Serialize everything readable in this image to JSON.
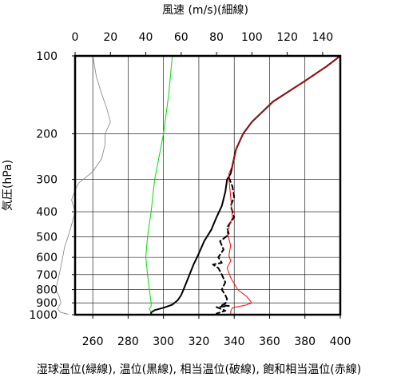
{
  "chart_data": {
    "type": "line",
    "title_top": "風速 (m/s)(細線)",
    "ylabel": "気圧(hPa)",
    "xlabel_bottom": "湿球温位(緑線), 温位(黒線), 相当温位(破線), 飽和相当温位(赤線)",
    "y_scale": "log",
    "ylim": [
      1000,
      100
    ],
    "y_ticks": [
      100,
      200,
      300,
      400,
      500,
      600,
      700,
      800,
      900,
      1000
    ],
    "x_bottom_lim": [
      250,
      400
    ],
    "x_bottom_ticks": [
      260,
      280,
      300,
      320,
      340,
      360,
      380,
      400
    ],
    "x_top_lim": [
      0,
      150
    ],
    "x_top_ticks": [
      0,
      20,
      40,
      60,
      80,
      100,
      120,
      140
    ],
    "grid": true,
    "series": [
      {
        "key": "wind_speed",
        "axis": "top",
        "color": "#808080",
        "style": "thin",
        "points": [
          [
            10,
            100
          ],
          [
            12,
            120
          ],
          [
            15,
            140
          ],
          [
            18,
            160
          ],
          [
            20,
            180
          ],
          [
            17,
            200
          ],
          [
            17,
            220
          ],
          [
            15,
            250
          ],
          [
            10,
            280
          ],
          [
            2,
            310
          ],
          [
            0,
            330
          ],
          [
            -2,
            360
          ],
          [
            0,
            400
          ],
          [
            -2,
            450
          ],
          [
            -4,
            500
          ],
          [
            -6,
            550
          ],
          [
            -7,
            600
          ],
          [
            -8,
            650
          ],
          [
            -9,
            700
          ],
          [
            -10,
            750
          ],
          [
            -11,
            800
          ],
          [
            -9,
            850
          ],
          [
            -8,
            900
          ],
          [
            -10,
            950
          ],
          [
            -8,
            980
          ],
          [
            -4,
            995
          ]
        ]
      },
      {
        "key": "wet_bulb_potential_temperature",
        "axis": "bottom",
        "color": "#00dd00",
        "style": "solid",
        "points": [
          [
            305,
            100
          ],
          [
            303,
            140
          ],
          [
            300,
            200
          ],
          [
            295,
            300
          ],
          [
            293,
            400
          ],
          [
            291,
            500
          ],
          [
            290,
            600
          ],
          [
            291,
            700
          ],
          [
            292,
            800
          ],
          [
            293,
            900
          ],
          [
            293,
            930
          ],
          [
            292,
            950
          ],
          [
            293,
            980
          ],
          [
            293,
            1000
          ]
        ]
      },
      {
        "key": "potential_temperature",
        "axis": "bottom",
        "color": "#000000",
        "style": "solid",
        "points": [
          [
            400,
            100
          ],
          [
            392,
            110
          ],
          [
            380,
            125
          ],
          [
            362,
            150
          ],
          [
            350,
            180
          ],
          [
            345,
            200
          ],
          [
            341,
            230
          ],
          [
            339,
            265
          ],
          [
            338,
            285
          ],
          [
            336,
            300
          ],
          [
            335,
            335
          ],
          [
            333,
            380
          ],
          [
            330,
            420
          ],
          [
            327,
            470
          ],
          [
            323,
            520
          ],
          [
            320,
            580
          ],
          [
            317,
            640
          ],
          [
            314,
            720
          ],
          [
            312,
            780
          ],
          [
            310,
            840
          ],
          [
            308,
            880
          ],
          [
            305,
            915
          ],
          [
            300,
            940
          ],
          [
            295,
            960
          ],
          [
            293,
            980
          ],
          [
            293,
            1000
          ]
        ]
      },
      {
        "key": "equivalent_potential_temperature",
        "axis": "bottom",
        "color": "#000000",
        "style": "dashed",
        "points": [
          [
            337,
            295
          ],
          [
            339,
            320
          ],
          [
            340,
            350
          ],
          [
            338,
            380
          ],
          [
            340,
            420
          ],
          [
            336,
            460
          ],
          [
            337,
            490
          ],
          [
            332,
            520
          ],
          [
            334,
            560
          ],
          [
            331,
            600
          ],
          [
            333,
            630
          ],
          [
            328,
            640
          ],
          [
            331,
            660
          ],
          [
            333,
            700
          ],
          [
            335,
            750
          ],
          [
            333,
            800
          ],
          [
            335,
            840
          ],
          [
            336,
            870
          ],
          [
            335,
            905
          ],
          [
            333,
            920
          ],
          [
            337,
            925
          ],
          [
            330,
            935
          ],
          [
            335,
            965
          ],
          [
            330,
            990
          ]
        ]
      },
      {
        "key": "saturated_equivalent_potential_temperature",
        "axis": "bottom",
        "color": "#ff0000",
        "style": "solid",
        "points": [
          [
            400,
            100
          ],
          [
            392,
            110
          ],
          [
            380,
            125
          ],
          [
            362,
            150
          ],
          [
            350,
            180
          ],
          [
            345,
            200
          ],
          [
            341,
            230
          ],
          [
            339,
            265
          ],
          [
            337,
            285
          ],
          [
            337,
            300
          ],
          [
            338,
            350
          ],
          [
            339,
            420
          ],
          [
            336,
            480
          ],
          [
            338,
            540
          ],
          [
            337,
            590
          ],
          [
            338,
            620
          ],
          [
            336,
            660
          ],
          [
            338,
            720
          ],
          [
            342,
            800
          ],
          [
            347,
            850
          ],
          [
            350,
            900
          ],
          [
            346,
            920
          ],
          [
            339,
            940
          ],
          [
            338,
            970
          ],
          [
            338,
            1000
          ]
        ]
      }
    ]
  }
}
